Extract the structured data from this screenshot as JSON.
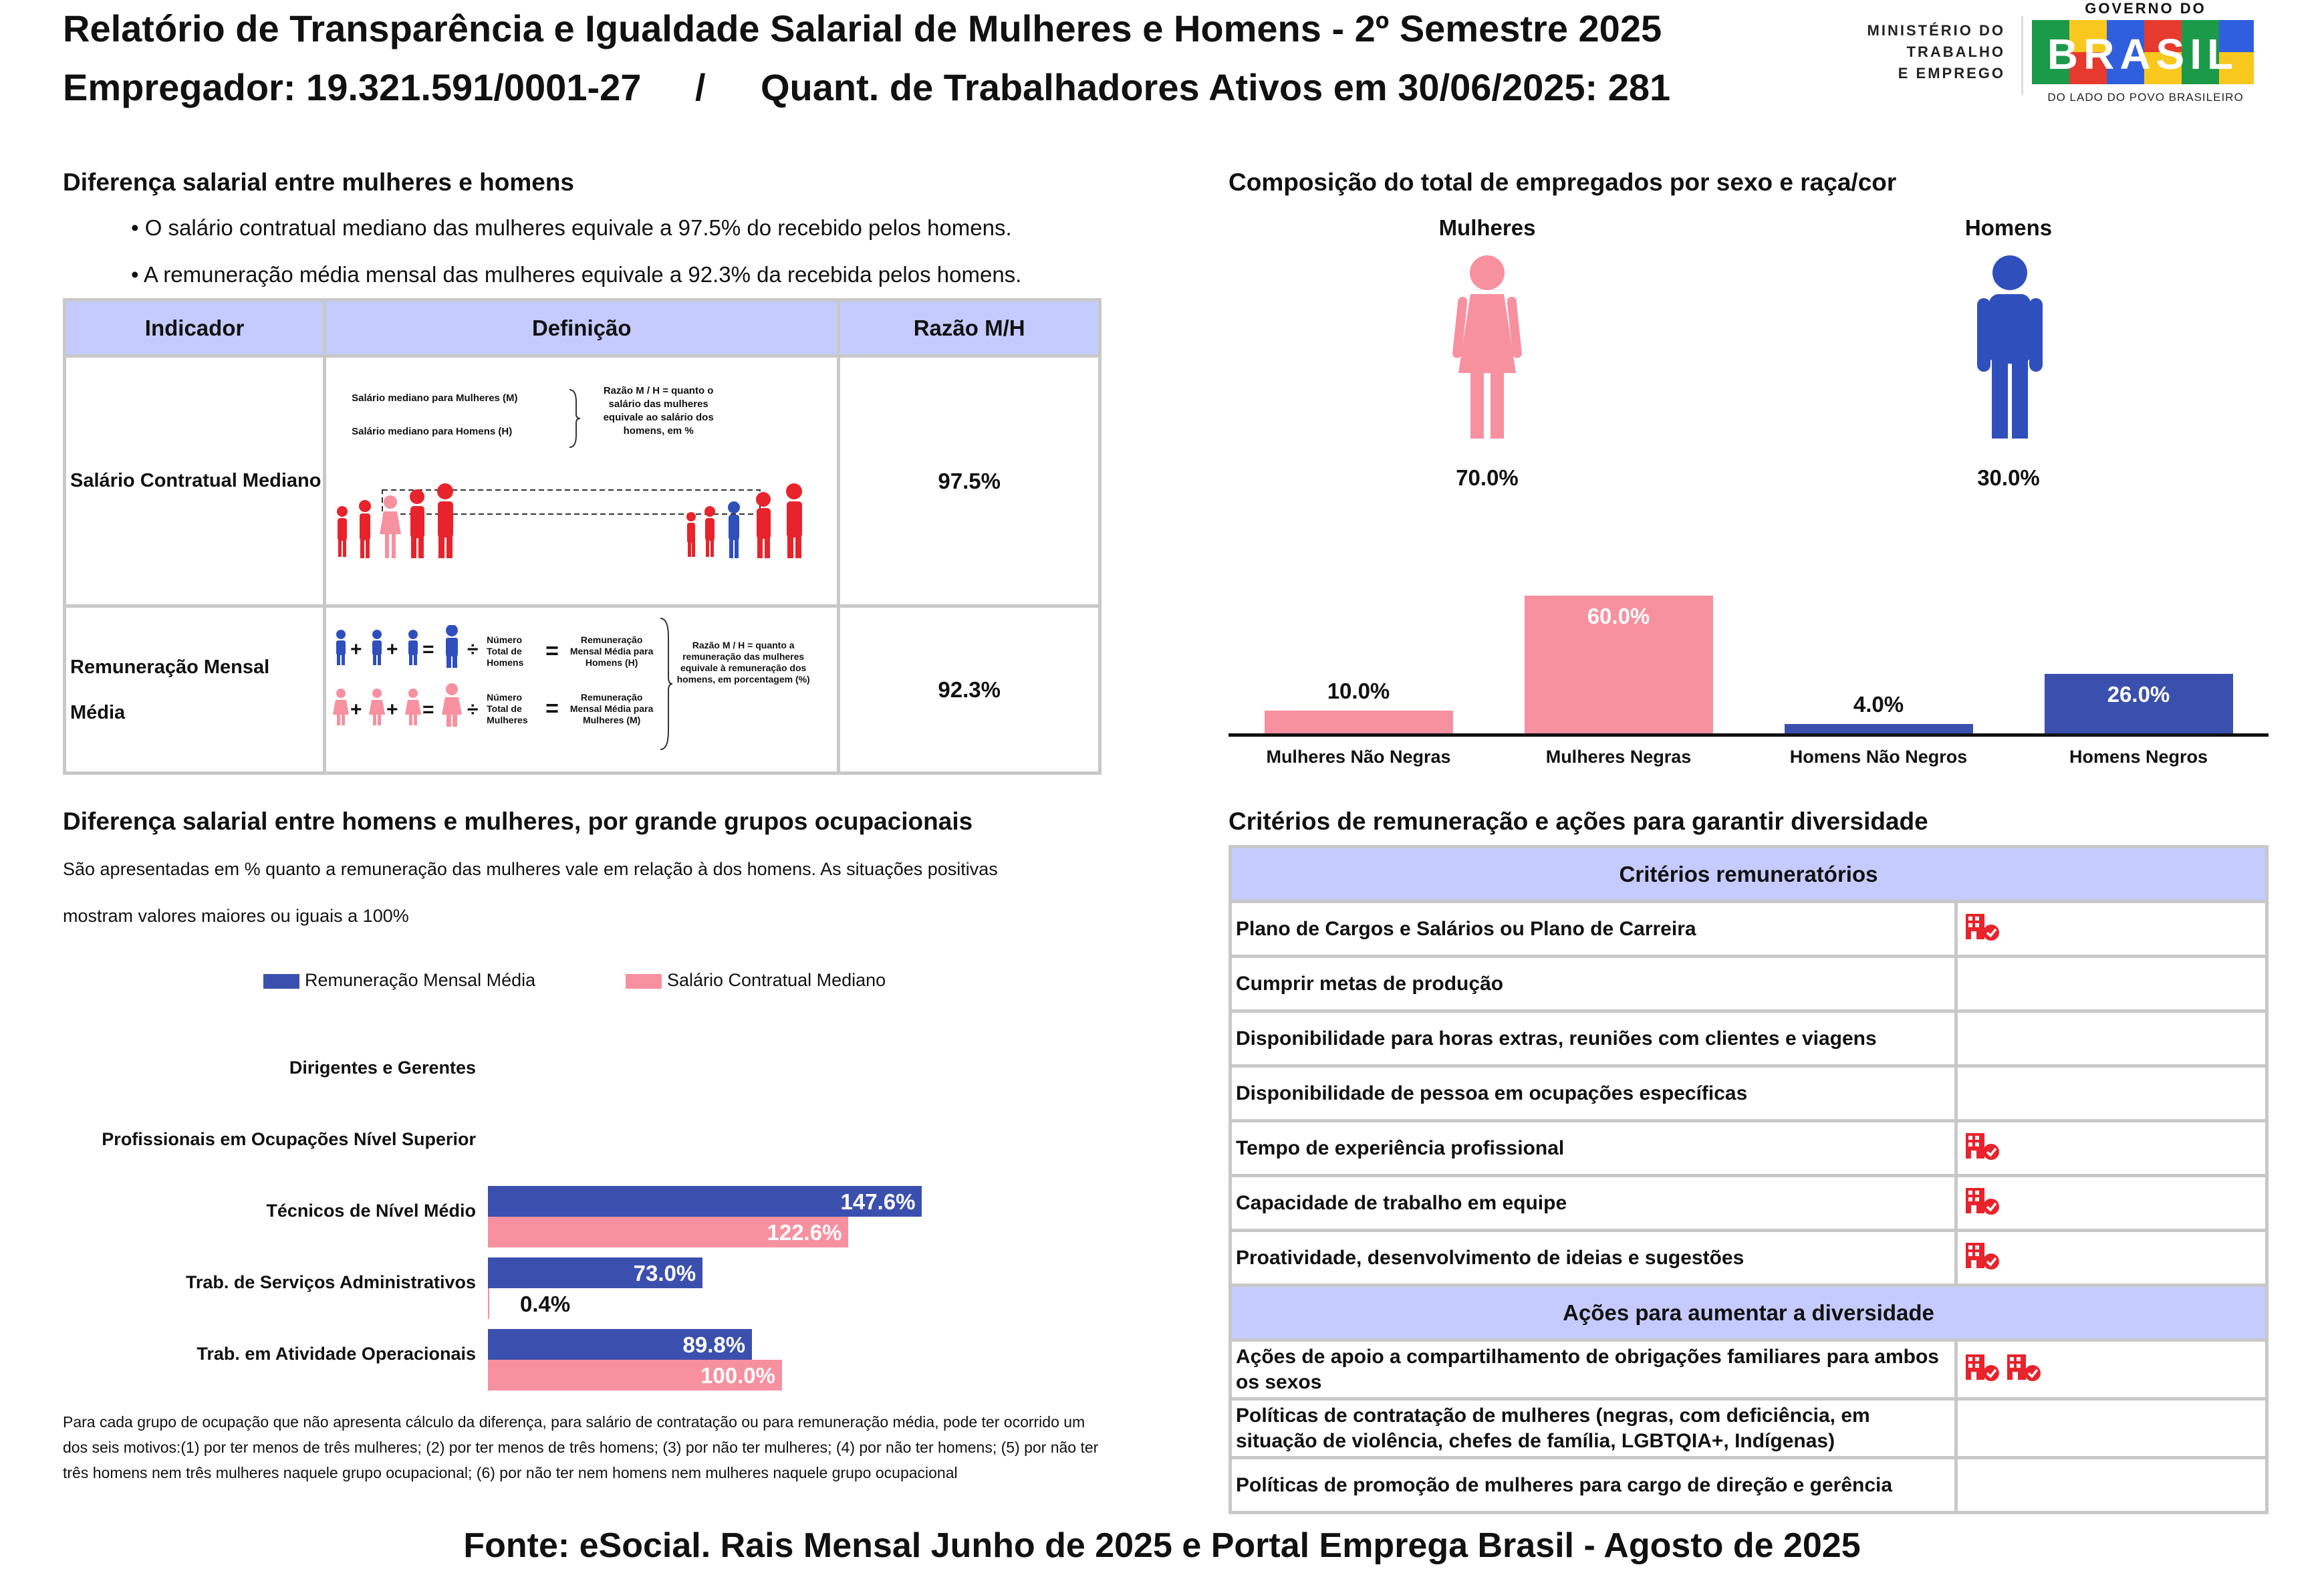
{
  "header": {
    "title": "Relatório de Transparência e Igualdade Salarial de Mulheres e Homens - 2º Semestre 2025",
    "employer": "Empregador: 19.321.591/0001-27",
    "separator": "/",
    "workers": "Quant. de Trabalhadores Ativos em 30/06/2025: 281"
  },
  "logos": {
    "ministry_line1": "MINISTÉRIO DO",
    "ministry_line2": "TRABALHO",
    "ministry_line3": "E EMPREGO",
    "gov_top": "GOVERNO DO",
    "gov_main": "BRASIL",
    "gov_bottom": "DO LADO DO POVO BRASILEIRO"
  },
  "salary_gap": {
    "title": "Diferença salarial entre mulheres e homens",
    "bullet1": "• O salário contratual mediano das mulheres equivale a 97.5% do recebido pelos homens.",
    "bullet2": "• A remuneração média mensal das mulheres equivale a 92.3% da recebida pelos homens.",
    "table": {
      "col_indicator": "Indicador",
      "col_definition": "Definição",
      "col_ratio": "Razão M/H",
      "row1": {
        "indicator": "Salário Contratual Mediano",
        "ratio": "97.5%",
        "def_line1": "Salário mediano para Mulheres (M)",
        "def_line2": "Salário mediano para Homens (H)",
        "def_note": "Razão M / H = quanto o salário das mulheres equivale ao salário dos homens, em %"
      },
      "row2": {
        "indicator": "Remuneração Mensal Média",
        "ratio": "92.3%",
        "def_total_h": "Número Total de Homens",
        "def_rem_h": "Remuneração Mensal Média para Homens (H)",
        "def_total_m": "Número Total de Mulheres",
        "def_rem_m": "Remuneração Mensal Média para Mulheres (M)",
        "def_note": "Razão M / H = quanto a remuneração das mulheres equivale à remuneração dos homens, em porcentagem (%)"
      }
    }
  },
  "composition": {
    "title": "Composição do total de empregados por sexo e raça/cor",
    "women_label": "Mulheres",
    "men_label": "Homens",
    "women_pct": "70.0%",
    "men_pct": "30.0%",
    "colors": {
      "women": "#f7909f",
      "men": "#2f4fbd"
    }
  },
  "chart_data": [
    {
      "type": "bar",
      "title": "Composição do total de empregados por sexo e raça/cor",
      "categories": [
        "Mulheres Não Negras",
        "Mulheres Negras",
        "Homens Não Negros",
        "Homens Negros"
      ],
      "values": [
        10.0,
        60.0,
        4.0,
        26.0
      ],
      "labels": [
        "10.0%",
        "60.0%",
        "4.0%",
        "26.0%"
      ],
      "colors": [
        "#f7909f",
        "#f7909f",
        "#3b50ae",
        "#3b50ae"
      ],
      "ylim": [
        0,
        60
      ]
    },
    {
      "type": "bar",
      "orientation": "horizontal",
      "title": "Diferença salarial entre homens e mulheres, por grande grupos ocupacionais",
      "categories": [
        "Dirigentes e Gerentes",
        "Profissionais em Ocupações Nível Superior",
        "Técnicos de Nível Médio",
        "Trab. de Serviços Administrativos",
        "Trab. em Atividade Operacionais"
      ],
      "series": [
        {
          "name": "Remuneração Mensal Média",
          "color": "#3b50ae",
          "values": [
            null,
            null,
            147.6,
            73.0,
            89.8
          ],
          "labels": [
            "",
            "",
            "147.6%",
            "73.0%",
            "89.8%"
          ]
        },
        {
          "name": "Salário Contratual Mediano",
          "color": "#f7909f",
          "values": [
            null,
            null,
            122.6,
            0.4,
            100.0
          ],
          "labels": [
            "",
            "",
            "122.6%",
            "0.4%",
            "100.0%"
          ]
        }
      ],
      "xlim": [
        0,
        150
      ]
    }
  ],
  "occupations": {
    "title": "Diferença salarial entre homens e mulheres, por grande grupos ocupacionais",
    "desc_line1": "São apresentadas em % quanto a remuneração das mulheres vale em relação à dos homens. As situações positivas",
    "desc_line2": "mostram valores maiores ou iguais a 100%",
    "legend_navy": "Remuneração Mensal Média",
    "legend_pink": "Salário Contratual Mediano",
    "footnote": "Para cada grupo de ocupação que não apresenta cálculo da diferença, para salário de contratação ou para remuneração média, pode ter ocorrido um dos seis motivos:(1) por ter menos de três mulheres; (2) por ter menos de três homens; (3) por não ter mulheres; (4) por não ter homens; (5) por não ter três homens nem três mulheres naquele grupo ocupacional; (6) por não ter nem homens nem mulheres naquele grupo ocupacional"
  },
  "criteria": {
    "title": "Critérios de remuneração e ações para garantir diversidade",
    "header1": "Critérios remuneratórios",
    "rows1": [
      {
        "label": "Plano de Cargos e Salários ou Plano de Carreira",
        "icons": 1
      },
      {
        "label": "Cumprir metas de produção",
        "icons": 0
      },
      {
        "label": "Disponibilidade para horas extras, reuniões com clientes e viagens",
        "icons": 0
      },
      {
        "label": "Disponibilidade de pessoa em ocupações específicas",
        "icons": 0
      },
      {
        "label": "Tempo de experiência profissional",
        "icons": 1
      },
      {
        "label": "Capacidade de trabalho em equipe",
        "icons": 1
      },
      {
        "label": "Proatividade, desenvolvimento de ideias e sugestões",
        "icons": 1
      }
    ],
    "header2": "Ações para aumentar a diversidade",
    "rows2": [
      {
        "label": "Ações de apoio a compartilhamento de obrigações familiares para ambos os sexos",
        "icons": 2
      },
      {
        "label": "Políticas de contratação de mulheres (negras, com deficiência, em situação de violência, chefes de família, LGBTQIA+, Indígenas)",
        "icons": 0
      },
      {
        "label": "Políticas de promoção de mulheres para cargo de direção e gerência",
        "icons": 0
      }
    ]
  },
  "footer": {
    "source": "Fonte: eSocial. Rais Mensal Junho de 2025 e Portal Emprega Brasil - Agosto de 2025"
  }
}
